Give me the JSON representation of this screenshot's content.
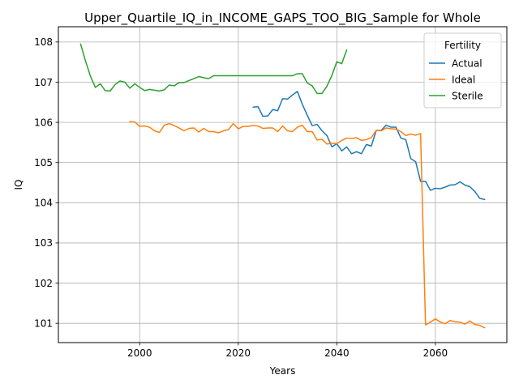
{
  "chart_data": {
    "type": "line",
    "title": "Upper_Quartile_IQ_in_INCOME_GAPS_TOO_BIG_Sample for Whole",
    "xlabel": "Years",
    "ylabel": "IQ",
    "xlim": [
      1983.5,
      2074.5
    ],
    "ylim": [
      100.52,
      108.38
    ],
    "xticks": [
      2000,
      2020,
      2040,
      2060
    ],
    "yticks": [
      101,
      102,
      103,
      104,
      105,
      106,
      107,
      108
    ],
    "grid": true,
    "legend": {
      "title": "Fertility",
      "placement": "upper right"
    },
    "series": [
      {
        "name": "Actual",
        "color": "#1f77b4",
        "x": [
          2023,
          2024,
          2025,
          2026,
          2027,
          2028,
          2029,
          2030,
          2031,
          2032,
          2033,
          2034,
          2035,
          2036,
          2037,
          2038,
          2039,
          2040,
          2041,
          2042,
          2043,
          2044,
          2045,
          2046,
          2047,
          2048,
          2049,
          2050,
          2051,
          2052,
          2053,
          2054,
          2055,
          2056,
          2057,
          2058,
          2059,
          2060,
          2061,
          2062,
          2063,
          2064,
          2065,
          2066,
          2067,
          2068,
          2069,
          2070
        ],
        "y": [
          106.38,
          106.39,
          106.15,
          106.16,
          106.32,
          106.29,
          106.59,
          106.58,
          106.68,
          106.77,
          106.45,
          106.18,
          105.92,
          105.95,
          105.79,
          105.67,
          105.39,
          105.47,
          105.29,
          105.39,
          105.22,
          105.27,
          105.22,
          105.45,
          105.41,
          105.8,
          105.8,
          105.93,
          105.88,
          105.88,
          105.61,
          105.57,
          105.1,
          105.02,
          104.53,
          104.53,
          104.31,
          104.36,
          104.35,
          104.39,
          104.44,
          104.45,
          104.52,
          104.44,
          104.4,
          104.28,
          104.11,
          104.08
        ]
      },
      {
        "name": "Ideal",
        "color": "#ff7f0e",
        "x": [
          1998,
          1999,
          2000,
          2001,
          2002,
          2003,
          2004,
          2005,
          2006,
          2007,
          2008,
          2009,
          2010,
          2011,
          2012,
          2013,
          2014,
          2015,
          2016,
          2017,
          2018,
          2019,
          2020,
          2021,
          2022,
          2023,
          2024,
          2025,
          2026,
          2027,
          2028,
          2029,
          2030,
          2031,
          2032,
          2033,
          2034,
          2035,
          2036,
          2037,
          2038,
          2039,
          2040,
          2041,
          2042,
          2043,
          2044,
          2045,
          2046,
          2047,
          2048,
          2049,
          2050,
          2051,
          2052,
          2053,
          2054,
          2055,
          2056,
          2057,
          2058,
          2059,
          2060,
          2061,
          2062,
          2063,
          2064,
          2065,
          2066,
          2067,
          2068,
          2069,
          2070
        ],
        "y": [
          106.02,
          106.01,
          105.9,
          105.91,
          105.88,
          105.79,
          105.75,
          105.93,
          105.97,
          105.92,
          105.86,
          105.79,
          105.85,
          105.86,
          105.76,
          105.85,
          105.77,
          105.77,
          105.74,
          105.79,
          105.82,
          105.97,
          105.84,
          105.9,
          105.9,
          105.92,
          105.91,
          105.85,
          105.86,
          105.86,
          105.77,
          105.91,
          105.79,
          105.77,
          105.88,
          105.93,
          105.77,
          105.77,
          105.56,
          105.58,
          105.46,
          105.48,
          105.47,
          105.55,
          105.61,
          105.6,
          105.62,
          105.55,
          105.57,
          105.62,
          105.8,
          105.79,
          105.86,
          105.84,
          105.83,
          105.77,
          105.67,
          105.71,
          105.68,
          105.72,
          100.96,
          101.03,
          101.11,
          101.03,
          100.99,
          101.07,
          101.04,
          101.03,
          100.98,
          101.06,
          100.97,
          100.95,
          100.89
        ]
      },
      {
        "name": "Sterile",
        "color": "#2ca02c",
        "x": [
          1988,
          1989,
          1990,
          1991,
          1992,
          1993,
          1994,
          1995,
          1996,
          1997,
          1998,
          1999,
          2000,
          2001,
          2002,
          2003,
          2004,
          2005,
          2006,
          2007,
          2008,
          2009,
          2010,
          2011,
          2012,
          2013,
          2014,
          2015,
          2016,
          2017,
          2018,
          2019,
          2020,
          2021,
          2022,
          2023,
          2024,
          2025,
          2026,
          2027,
          2028,
          2029,
          2030,
          2031,
          2032,
          2033,
          2034,
          2035,
          2036,
          2037,
          2038,
          2039,
          2040,
          2041,
          2042
        ],
        "y": [
          107.95,
          107.53,
          107.15,
          106.87,
          106.96,
          106.79,
          106.78,
          106.94,
          107.03,
          107.0,
          106.85,
          106.96,
          106.87,
          106.79,
          106.82,
          106.8,
          106.78,
          106.81,
          106.93,
          106.91,
          106.99,
          106.99,
          107.04,
          107.09,
          107.14,
          107.11,
          107.09,
          107.16,
          107.16,
          107.16,
          107.16,
          107.16,
          107.16,
          107.16,
          107.16,
          107.16,
          107.16,
          107.16,
          107.16,
          107.16,
          107.16,
          107.16,
          107.16,
          107.16,
          107.21,
          107.21,
          106.98,
          106.91,
          106.72,
          106.72,
          106.9,
          107.17,
          107.51,
          107.46,
          107.8
        ]
      }
    ]
  }
}
